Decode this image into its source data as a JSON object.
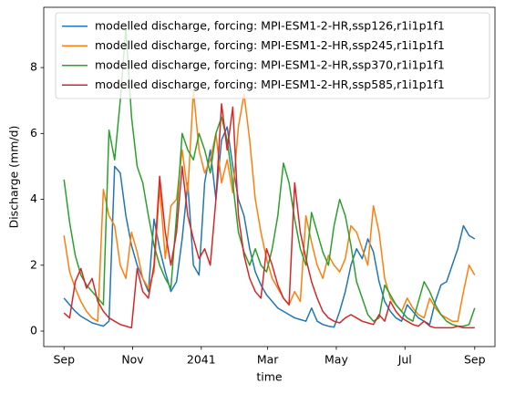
{
  "chart_data": {
    "type": "line",
    "x_label": "time",
    "y_label": "Discharge (mm/d)",
    "x": [
      0,
      5,
      10,
      15,
      20,
      25,
      30,
      35,
      40,
      45,
      50,
      55,
      60,
      65,
      70,
      75,
      80,
      85,
      90,
      95,
      100,
      105,
      110,
      115,
      120,
      125,
      130,
      135,
      140,
      145,
      150,
      155,
      160,
      165,
      170,
      175,
      180,
      185,
      190,
      195,
      200,
      205,
      210,
      215,
      220,
      225,
      230,
      235,
      240,
      245,
      250,
      255,
      260,
      265,
      270,
      275,
      280,
      285,
      290,
      295,
      300,
      305,
      310,
      315,
      320,
      325,
      330,
      335,
      340,
      345,
      350,
      355,
      360,
      365
    ],
    "xlim": [
      -18,
      383
    ],
    "xticks": [
      {
        "value": 0,
        "label": "Sep"
      },
      {
        "value": 61,
        "label": "Nov"
      },
      {
        "value": 122,
        "label": "2041"
      },
      {
        "value": 181,
        "label": "Mar"
      },
      {
        "value": 242,
        "label": "May"
      },
      {
        "value": 303,
        "label": "Jul"
      },
      {
        "value": 365,
        "label": "Sep"
      }
    ],
    "ylim": [
      -0.47,
      9.83
    ],
    "yticks": [
      0,
      2,
      4,
      6,
      8
    ],
    "legend": "upper right",
    "series": [
      {
        "name": "modelled discharge, forcing: MPI-ESM1-2-HR,ssp126,r1i1p1f1",
        "color": "#1f77b4",
        "values": [
          1.0,
          0.8,
          0.6,
          0.45,
          0.35,
          0.25,
          0.2,
          0.15,
          0.3,
          5.0,
          4.8,
          3.5,
          2.6,
          2.0,
          1.6,
          1.2,
          3.4,
          2.5,
          1.8,
          1.2,
          1.5,
          2.8,
          4.5,
          2.0,
          1.7,
          4.5,
          5.5,
          4.0,
          5.8,
          6.2,
          5.0,
          4.0,
          3.5,
          2.5,
          1.8,
          1.4,
          1.1,
          0.9,
          0.7,
          0.6,
          0.5,
          0.4,
          0.35,
          0.3,
          0.7,
          0.3,
          0.2,
          0.15,
          0.12,
          0.6,
          1.2,
          2.0,
          2.5,
          2.2,
          2.8,
          2.4,
          1.5,
          0.9,
          0.6,
          0.4,
          0.3,
          0.8,
          0.6,
          0.4,
          0.3,
          0.2,
          0.9,
          1.4,
          1.5,
          2.0,
          2.5,
          3.2,
          2.9,
          2.8
        ]
      },
      {
        "name": "modelled discharge, forcing: MPI-ESM1-2-HR,ssp245,r1i1p1f1",
        "color": "#ff7f0e",
        "values": [
          2.9,
          1.8,
          1.3,
          0.9,
          0.6,
          0.4,
          0.3,
          4.3,
          3.5,
          3.2,
          2.0,
          1.6,
          3.0,
          2.4,
          1.6,
          1.3,
          1.8,
          4.4,
          2.2,
          3.8,
          4.0,
          5.5,
          4.2,
          7.3,
          5.5,
          4.8,
          5.2,
          6.0,
          4.5,
          5.2,
          4.2,
          6.2,
          7.2,
          5.8,
          4.0,
          3.0,
          2.2,
          1.6,
          1.3,
          1.0,
          0.8,
          1.2,
          0.9,
          3.5,
          2.7,
          2.0,
          1.6,
          2.3,
          2.0,
          1.8,
          2.2,
          3.2,
          3.0,
          2.5,
          2.0,
          3.8,
          3.0,
          1.6,
          1.0,
          0.8,
          0.6,
          1.0,
          0.7,
          0.5,
          0.4,
          1.0,
          0.7,
          0.5,
          0.4,
          0.3,
          0.3,
          1.2,
          2.0,
          1.7
        ]
      },
      {
        "name": "modelled discharge, forcing: MPI-ESM1-2-HR,ssp370,r1i1p1f1",
        "color": "#2ca02c",
        "values": [
          4.6,
          3.3,
          2.3,
          1.7,
          1.4,
          1.2,
          1.0,
          0.8,
          6.1,
          5.2,
          7.0,
          9.2,
          6.5,
          5.0,
          4.5,
          3.5,
          2.6,
          2.0,
          1.6,
          1.3,
          3.5,
          6.0,
          5.5,
          5.2,
          6.0,
          5.5,
          4.8,
          6.0,
          6.5,
          5.8,
          4.5,
          3.0,
          2.4,
          2.0,
          2.5,
          2.0,
          1.8,
          2.5,
          3.5,
          5.1,
          4.5,
          3.4,
          2.5,
          2.0,
          3.6,
          3.0,
          2.4,
          2.0,
          3.2,
          4.0,
          3.5,
          2.6,
          1.5,
          1.0,
          0.5,
          0.3,
          0.4,
          1.4,
          1.1,
          0.8,
          0.6,
          0.4,
          0.3,
          0.9,
          1.5,
          1.2,
          0.8,
          0.5,
          0.3,
          0.2,
          0.15,
          0.15,
          0.2,
          0.7
        ]
      },
      {
        "name": "modelled discharge, forcing: MPI-ESM1-2-HR,ssp585,r1i1p1f1",
        "color": "#d62728",
        "values": [
          0.55,
          0.4,
          1.5,
          1.9,
          1.3,
          1.6,
          0.9,
          0.6,
          0.4,
          0.3,
          0.2,
          0.15,
          0.1,
          1.9,
          1.2,
          1.0,
          2.0,
          4.7,
          3.0,
          2.0,
          3.0,
          5.0,
          3.5,
          2.8,
          2.2,
          2.5,
          2.0,
          4.0,
          6.9,
          5.5,
          6.8,
          3.5,
          2.3,
          1.6,
          1.2,
          1.0,
          2.5,
          2.0,
          1.4,
          1.0,
          0.8,
          4.5,
          3.0,
          2.2,
          1.5,
          1.0,
          0.6,
          0.4,
          0.3,
          0.25,
          0.4,
          0.5,
          0.4,
          0.3,
          0.25,
          0.2,
          0.5,
          0.3,
          0.9,
          0.6,
          0.4,
          0.3,
          0.2,
          0.15,
          0.3,
          0.15,
          0.1,
          0.1,
          0.1,
          0.1,
          0.15,
          0.1,
          0.1,
          0.1
        ]
      }
    ]
  }
}
